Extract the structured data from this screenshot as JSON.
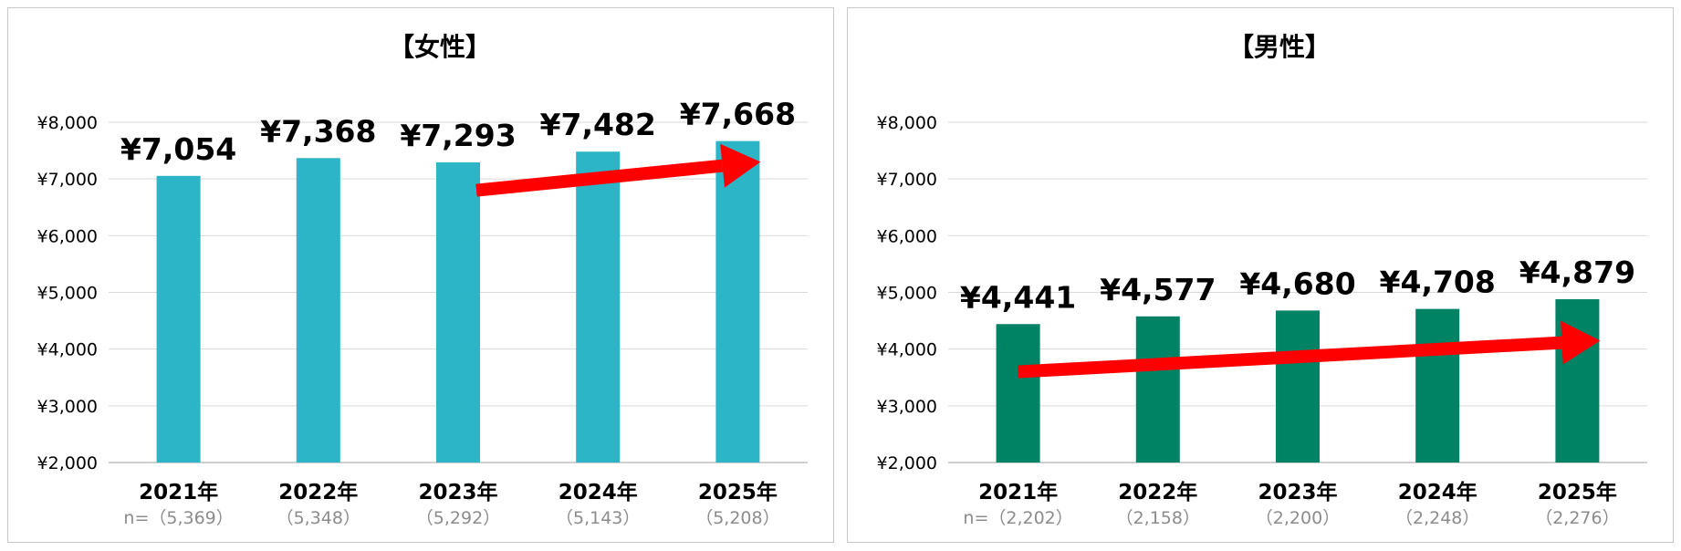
{
  "chart_data": [
    {
      "type": "bar",
      "title": "【女性】",
      "categories": [
        "2021年",
        "2022年",
        "2023年",
        "2024年",
        "2025年"
      ],
      "sample_sizes": [
        "n=（5,369）",
        "（5,348）",
        "（5,292）",
        "（5,143）",
        "（5,208）"
      ],
      "values": [
        7054,
        7368,
        7293,
        7482,
        7668
      ],
      "value_labels": [
        "¥7,054",
        "¥7,368",
        "¥7,293",
        "¥7,482",
        "¥7,668"
      ],
      "ylim": [
        2000,
        8000
      ],
      "yticks": [
        "¥2,000",
        "¥3,000",
        "¥4,000",
        "¥5,000",
        "¥6,000",
        "¥7,000",
        "¥8,000"
      ],
      "bar_color": "#2BB5C7",
      "trend_arrow": {
        "color": "#FF0000",
        "from": {
          "category": "2023年",
          "value": 6800
        },
        "to": {
          "category": "2025年",
          "value": 7300
        }
      },
      "grid": true,
      "xlabel": "",
      "ylabel": ""
    },
    {
      "type": "bar",
      "title": "【男性】",
      "categories": [
        "2021年",
        "2022年",
        "2023年",
        "2024年",
        "2025年"
      ],
      "sample_sizes": [
        "n=（2,202）",
        "（2,158）",
        "（2,200）",
        "（2,248）",
        "（2,276）"
      ],
      "values": [
        4441,
        4577,
        4680,
        4708,
        4879
      ],
      "value_labels": [
        "¥4,441",
        "¥4,577",
        "¥4,680",
        "¥4,708",
        "¥4,879"
      ],
      "ylim": [
        2000,
        8000
      ],
      "yticks": [
        "¥2,000",
        "¥3,000",
        "¥4,000",
        "¥5,000",
        "¥6,000",
        "¥7,000",
        "¥8,000"
      ],
      "bar_color": "#008264",
      "trend_arrow": {
        "color": "#FF0000",
        "from": {
          "category": "2021年",
          "value": 3600
        },
        "to": {
          "category": "2025年",
          "value": 4150
        }
      },
      "grid": true,
      "xlabel": "",
      "ylabel": ""
    }
  ]
}
